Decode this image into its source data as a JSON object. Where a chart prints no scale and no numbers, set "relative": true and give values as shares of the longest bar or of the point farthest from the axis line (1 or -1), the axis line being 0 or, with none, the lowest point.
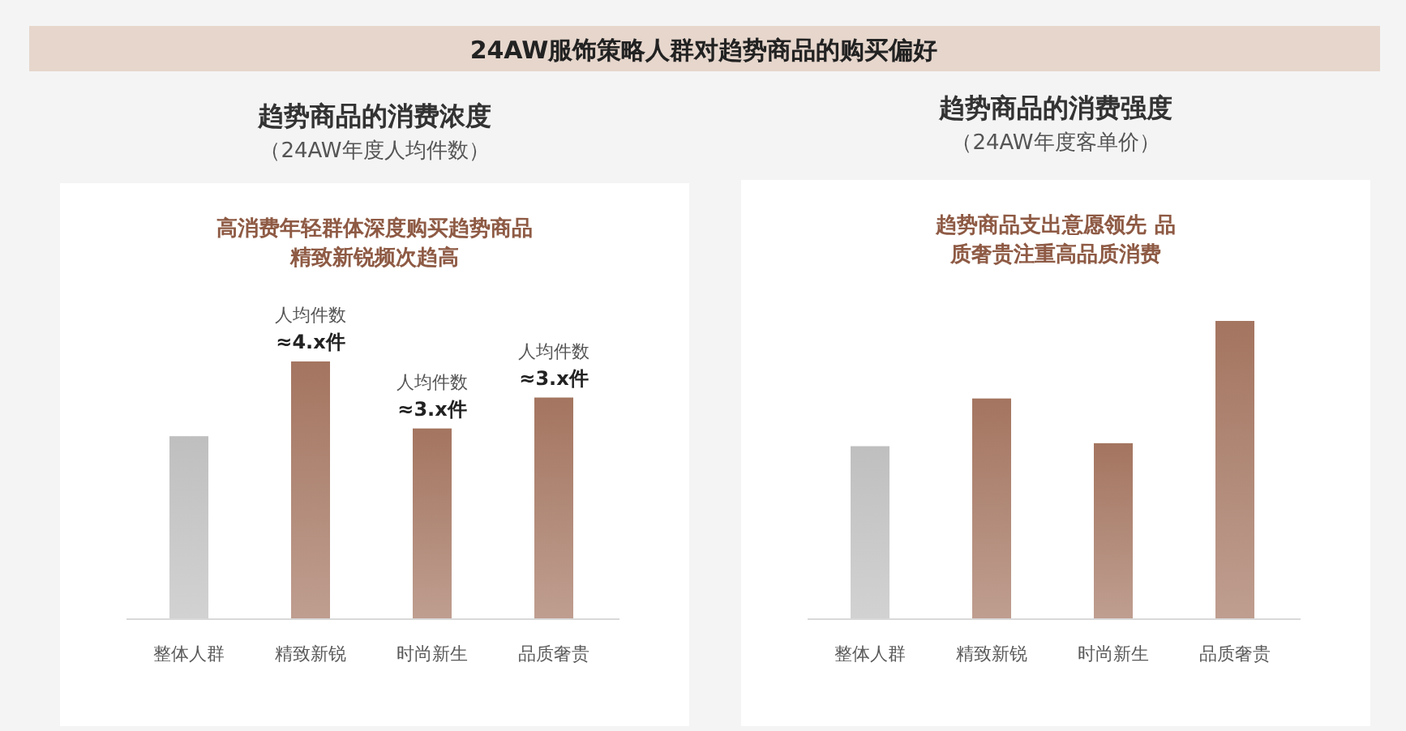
{
  "chart_data": [
    {
      "type": "bar",
      "title": "趋势商品的消费浓度",
      "subtitle": "（24AW年度人均件数）",
      "annotations": [
        "24AW服饰策略人群对趋势商品的购买偏好",
        "高消费年轻群体深度购买趋势商品精致新锐频次趋高",
        {
          "text": "人均件数",
          "x": "精致新锐",
          "y": 1
        },
        {
          "text": "≈4.x件",
          "x": "精致新锐",
          "y": 1
        },
        {
          "text": "人均件数",
          "x": "时尚新生",
          "y": 0.74
        },
        {
          "text": "≈3.x件",
          "x": "时尚新生",
          "y": 0.74
        },
        {
          "text": "人均件数",
          "x": "品质奢贵",
          "y": 0.86
        },
        {
          "text": "≈3.x件",
          "x": "品质奢贵",
          "y": 0.86
        }
      ],
      "relative": true,
      "categories": [
        "整体人群",
        "精致新锐",
        "时尚新生",
        "品质奢贵"
      ],
      "values": [
        0.71,
        1,
        0.74,
        0.86
      ],
      "colors": [
        "#bfbfbf",
        "#a47560",
        "#a47560",
        "#a47560"
      ]
    },
    {
      "type": "bar",
      "title": "趋势商品的消费强度",
      "subtitle": "（24AW年度客单价）",
      "annotations": [
        "趋势商品支出意愿领先 品质奢贵注重高品质消费"
      ],
      "relative": true,
      "categories": [
        "整体人群",
        "精致新锐",
        "时尚新生",
        "品质奢贵"
      ],
      "values": [
        0.58,
        0.74,
        0.59,
        1
      ],
      "colors": [
        "#bfbfbf",
        "#a47560",
        "#a47560",
        "#a47560"
      ]
    }
  ]
}
